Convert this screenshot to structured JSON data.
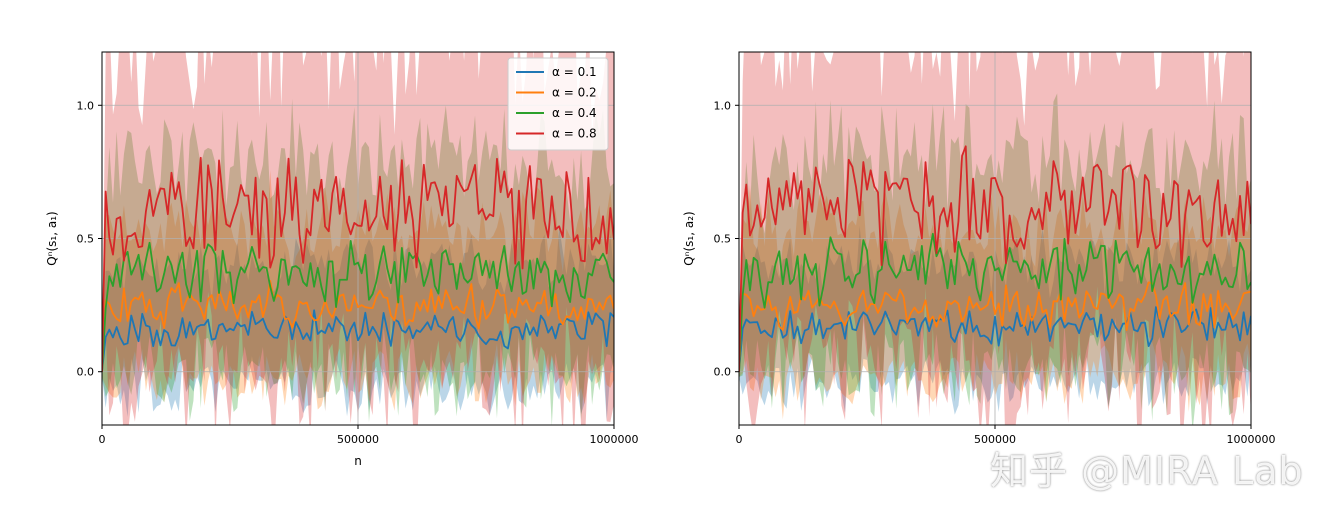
{
  "chart_data": [
    {
      "type": "line",
      "xlabel": "n",
      "ylabel": "Qⁿ(s₁, a₁)",
      "xlim": [
        0,
        1000000
      ],
      "ylim": [
        -0.2,
        1.2
      ],
      "xticks": [
        {
          "value": 0,
          "label": "0"
        },
        {
          "value": 500000,
          "label": "500000"
        },
        {
          "value": 1000000,
          "label": "1000000"
        }
      ],
      "yticks": [
        {
          "value": 0.0,
          "label": "0.0"
        },
        {
          "value": 0.5,
          "label": "0.5"
        },
        {
          "value": 1.0,
          "label": "1.0"
        }
      ],
      "grid": true,
      "legend": "top-right",
      "series": [
        {
          "name": "α = 0.1",
          "color": "#1f77b4",
          "mean": 0.16,
          "amp": 0.05,
          "seed": 11,
          "band": 0.22
        },
        {
          "name": "α = 0.2",
          "color": "#ff7f0e",
          "mean": 0.25,
          "amp": 0.06,
          "seed": 23,
          "band": 0.27
        },
        {
          "name": "α = 0.4",
          "color": "#2ca02c",
          "mean": 0.37,
          "amp": 0.09,
          "seed": 37,
          "band": 0.38
        },
        {
          "name": "α = 0.8",
          "color": "#d62728",
          "mean": 0.6,
          "amp": 0.15,
          "seed": 53,
          "band": 0.62
        }
      ]
    },
    {
      "type": "line",
      "xlabel": "",
      "ylabel": "Qⁿ(s₁, a₂)",
      "xlim": [
        0,
        1000000
      ],
      "ylim": [
        -0.2,
        1.2
      ],
      "xticks": [
        {
          "value": 0,
          "label": "0"
        },
        {
          "value": 500000,
          "label": "500000"
        },
        {
          "value": 1000000,
          "label": "1000000"
        }
      ],
      "yticks": [
        {
          "value": 0.0,
          "label": "0.0"
        },
        {
          "value": 0.5,
          "label": "0.5"
        },
        {
          "value": 1.0,
          "label": "1.0"
        }
      ],
      "grid": true,
      "legend": "none",
      "series": [
        {
          "name": "α = 0.1",
          "color": "#1f77b4",
          "mean": 0.17,
          "amp": 0.05,
          "seed": 71,
          "band": 0.22
        },
        {
          "name": "α = 0.2",
          "color": "#ff7f0e",
          "mean": 0.25,
          "amp": 0.06,
          "seed": 83,
          "band": 0.27
        },
        {
          "name": "α = 0.4",
          "color": "#2ca02c",
          "mean": 0.38,
          "amp": 0.09,
          "seed": 97,
          "band": 0.38
        },
        {
          "name": "α = 0.8",
          "color": "#d62728",
          "mean": 0.62,
          "amp": 0.15,
          "seed": 109,
          "band": 0.62
        }
      ]
    }
  ],
  "watermark": "知乎 @MIRA Lab"
}
